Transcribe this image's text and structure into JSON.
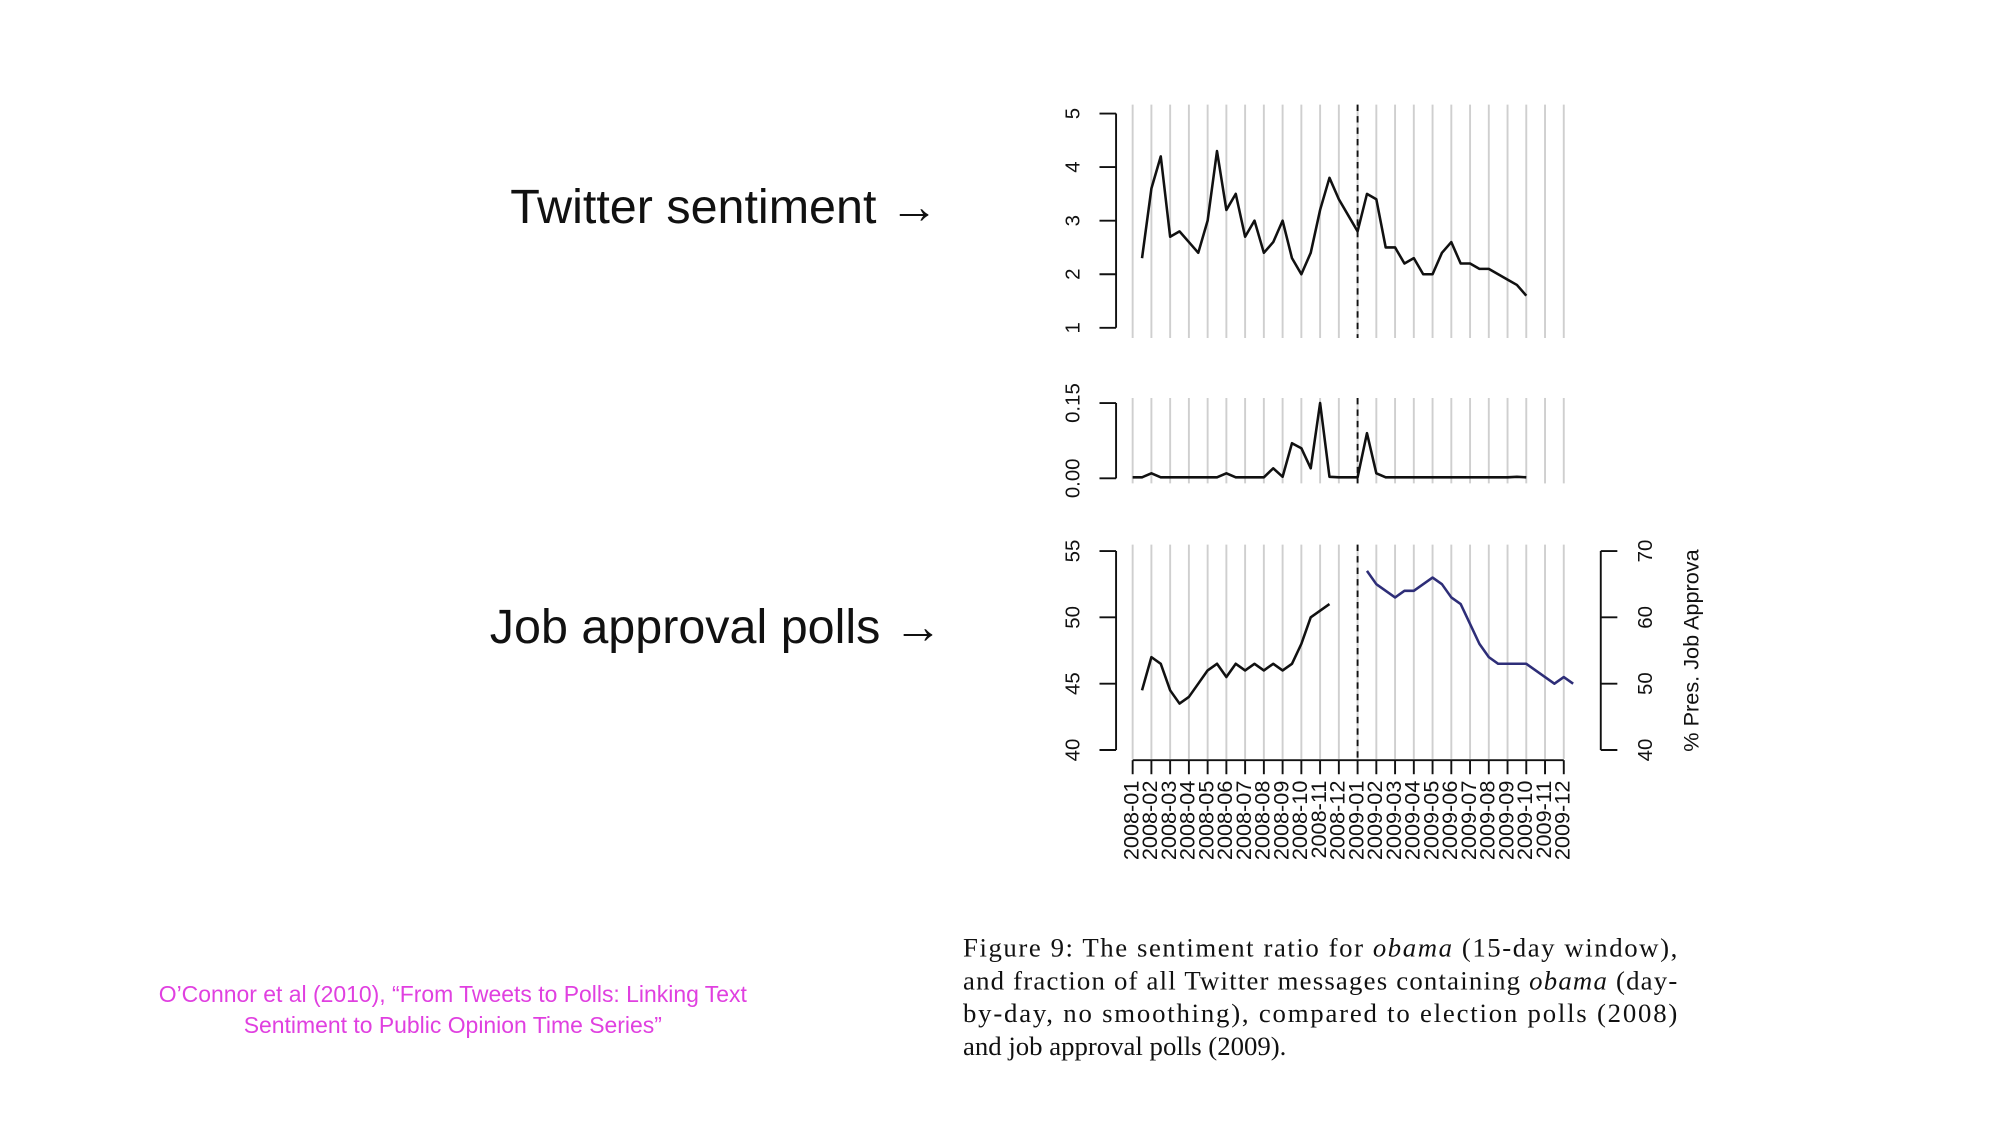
{
  "slide": {
    "labels": [
      "Twitter sentiment →",
      "Job approval polls →"
    ],
    "citation": [
      "O’Connor et al (2010), “From Tweets to Polls: Linking Text",
      "Sentiment to Public Opinion Time Series”"
    ],
    "caption": [
      [
        {
          "text": "Figure 9: The sentiment ratio for "
        },
        {
          "text": "obama",
          "italic": true
        },
        {
          "text": " (15-day window),"
        }
      ],
      [
        {
          "text": "and fraction of all Twitter messages containing "
        },
        {
          "text": "obama",
          "italic": true
        },
        {
          "text": " (day-"
        }
      ],
      [
        {
          "text": "by-day, no smoothing), compared to election polls (2008)"
        }
      ],
      [
        {
          "text": "and job approval polls (2009)."
        }
      ]
    ]
  },
  "chart_data": [
    {
      "type": "line",
      "grid": true,
      "ylim": [
        1,
        5
      ],
      "yticks": [
        1,
        2,
        3,
        4,
        5
      ],
      "series": [
        {
          "color": "#111111",
          "values": [
            null,
            2.3,
            3.6,
            4.2,
            2.7,
            2.8,
            2.6,
            2.4,
            3.0,
            4.3,
            3.2,
            3.5,
            2.7,
            3.0,
            2.4,
            2.6,
            3.0,
            2.3,
            2.0,
            2.4,
            3.2,
            3.8,
            3.4,
            3.1,
            2.8,
            3.5,
            3.4,
            2.5,
            2.5,
            2.2,
            2.3,
            2.0,
            2.0,
            2.4,
            2.6,
            2.2,
            2.2,
            2.1,
            2.1,
            2.0,
            1.9,
            1.8,
            1.6,
            null,
            null,
            null,
            null,
            null
          ]
        }
      ]
    },
    {
      "type": "line",
      "grid": true,
      "ylim": [
        0,
        0.15
      ],
      "yticks": [
        {
          "value": 0,
          "label": "0.00"
        },
        {
          "value": 0.15,
          "label": "0.15"
        }
      ],
      "series": [
        {
          "color": "#111111",
          "values": [
            0.002,
            0.002,
            0.01,
            0.002,
            0.002,
            0.002,
            0.002,
            0.002,
            0.002,
            0.002,
            0.01,
            0.002,
            0.002,
            0.002,
            0.002,
            0.02,
            0.003,
            0.07,
            0.06,
            0.02,
            0.15,
            0.003,
            0.002,
            0.002,
            0.002,
            0.09,
            0.01,
            0.002,
            0.002,
            0.002,
            0.002,
            0.002,
            0.002,
            0.002,
            0.002,
            0.002,
            0.002,
            0.002,
            0.002,
            0.002,
            0.002,
            0.003,
            0.002,
            null,
            null,
            null,
            null,
            null
          ]
        }
      ]
    },
    {
      "type": "line",
      "grid": true,
      "categories": [
        "2008-01",
        null,
        "2008-02",
        null,
        "2008-03",
        null,
        "2008-04",
        null,
        "2008-05",
        null,
        "2008-06",
        null,
        "2008-07",
        null,
        "2008-08",
        null,
        "2008-09",
        null,
        "2008-10",
        null,
        "2008-11",
        null,
        "2008-12",
        null,
        "2009-01",
        null,
        "2009-02",
        null,
        "2009-03",
        null,
        "2009-04",
        null,
        "2009-05",
        null,
        "2009-06",
        null,
        "2009-07",
        null,
        "2009-08",
        null,
        "2009-09",
        null,
        "2009-10",
        null,
        "2009-11",
        null,
        "2009-12",
        null
      ],
      "ylim": [
        40,
        55
      ],
      "yticks": [
        40,
        45,
        50,
        55
      ],
      "y2lim": [
        40,
        70
      ],
      "y2ticks": [
        40,
        50,
        60,
        70
      ],
      "y2label": "% Pres. Job Approva",
      "series": [
        {
          "color": "#111111",
          "values": [
            null,
            44.5,
            47,
            46.5,
            44.5,
            43.5,
            44,
            45,
            46,
            46.5,
            45.5,
            46.5,
            46,
            46.5,
            46,
            46.5,
            46,
            46.5,
            48,
            50,
            50.5,
            51,
            null,
            null,
            null,
            null,
            null,
            null,
            null,
            null,
            null,
            null,
            null,
            null,
            null,
            null,
            null,
            null,
            null,
            null,
            null,
            null,
            null,
            null,
            null,
            null,
            null,
            null
          ]
        },
        {
          "color": "#2e2e78",
          "axis": "y2",
          "values": [
            null,
            null,
            null,
            null,
            null,
            null,
            null,
            null,
            null,
            null,
            null,
            null,
            null,
            null,
            null,
            null,
            null,
            null,
            null,
            null,
            null,
            null,
            null,
            null,
            null,
            67,
            65,
            64,
            63,
            64,
            64,
            65,
            66,
            65,
            63,
            62,
            59,
            56,
            54,
            53,
            53,
            53,
            53,
            52,
            51,
            50,
            51,
            50
          ]
        }
      ]
    }
  ]
}
